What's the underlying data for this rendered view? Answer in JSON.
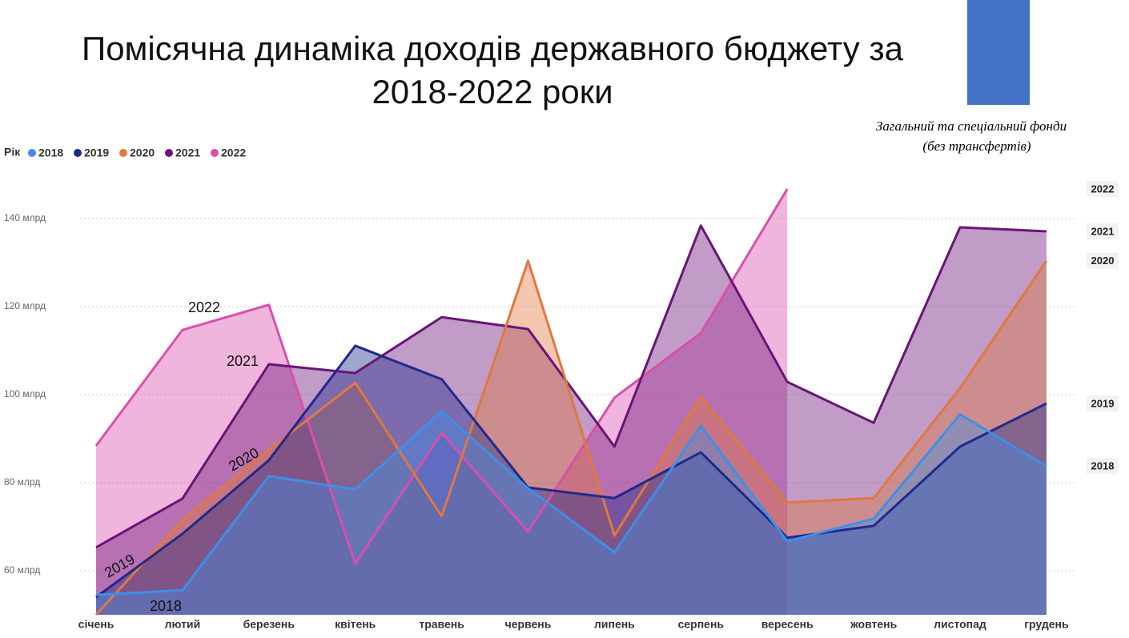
{
  "chart_data": {
    "type": "area",
    "title": [
      "Помісячна динаміка доходів державного бюджету за",
      "2018-2022 роки"
    ],
    "subtitle": [
      "Загальний та спеціальний фонди",
      "(без трансфертів)"
    ],
    "legend_title": "Рік",
    "categories": [
      "січень",
      "лютий",
      "березень",
      "квітень",
      "травень",
      "червень",
      "липень",
      "серпень",
      "вересень",
      "жовтень",
      "листопад",
      "грудень"
    ],
    "series": [
      {
        "name": "2018",
        "color": "#3d8fe8",
        "values": [
          54.5,
          55.6,
          81.5,
          78.5,
          96.2,
          78.7,
          64.2,
          92.9,
          66.7,
          71.8,
          95.5,
          83.8
        ]
      },
      {
        "name": "2019",
        "color": "#1f2a8c",
        "values": [
          54,
          68.4,
          85.1,
          111.1,
          103.5,
          78.9,
          76.5,
          86.9,
          67.5,
          70.2,
          88.2,
          98
        ]
      },
      {
        "name": "2020",
        "color": "#e07840",
        "values": [
          50,
          71.5,
          87.5,
          102.7,
          72.4,
          130.4,
          68,
          99.5,
          75.5,
          76.5,
          101.5,
          130.4
        ]
      },
      {
        "name": "2021",
        "color": "#6a1477",
        "values": [
          65.3,
          76.4,
          106.9,
          104.9,
          117.6,
          114.9,
          88.2,
          138.4,
          102.9,
          93.6,
          138,
          137.1
        ]
      },
      {
        "name": "2022",
        "color": "#d94fad",
        "values": [
          88.4,
          114.7,
          120.4,
          61.6,
          91.3,
          68.9,
          99.3,
          114,
          146.7,
          null,
          null,
          null
        ]
      }
    ],
    "annotations": [
      "2022",
      "2021",
      "2020",
      "2019",
      "2018"
    ],
    "ylim": [
      50,
      150
    ],
    "yticks": [
      {
        "value": 60,
        "label": "60 млрд"
      },
      {
        "value": 80,
        "label": "80 млрд"
      },
      {
        "value": 100,
        "label": "100 млрд"
      },
      {
        "value": 120,
        "label": "120 млрд"
      },
      {
        "value": 140,
        "label": "140 млрд"
      }
    ],
    "grid": true
  }
}
